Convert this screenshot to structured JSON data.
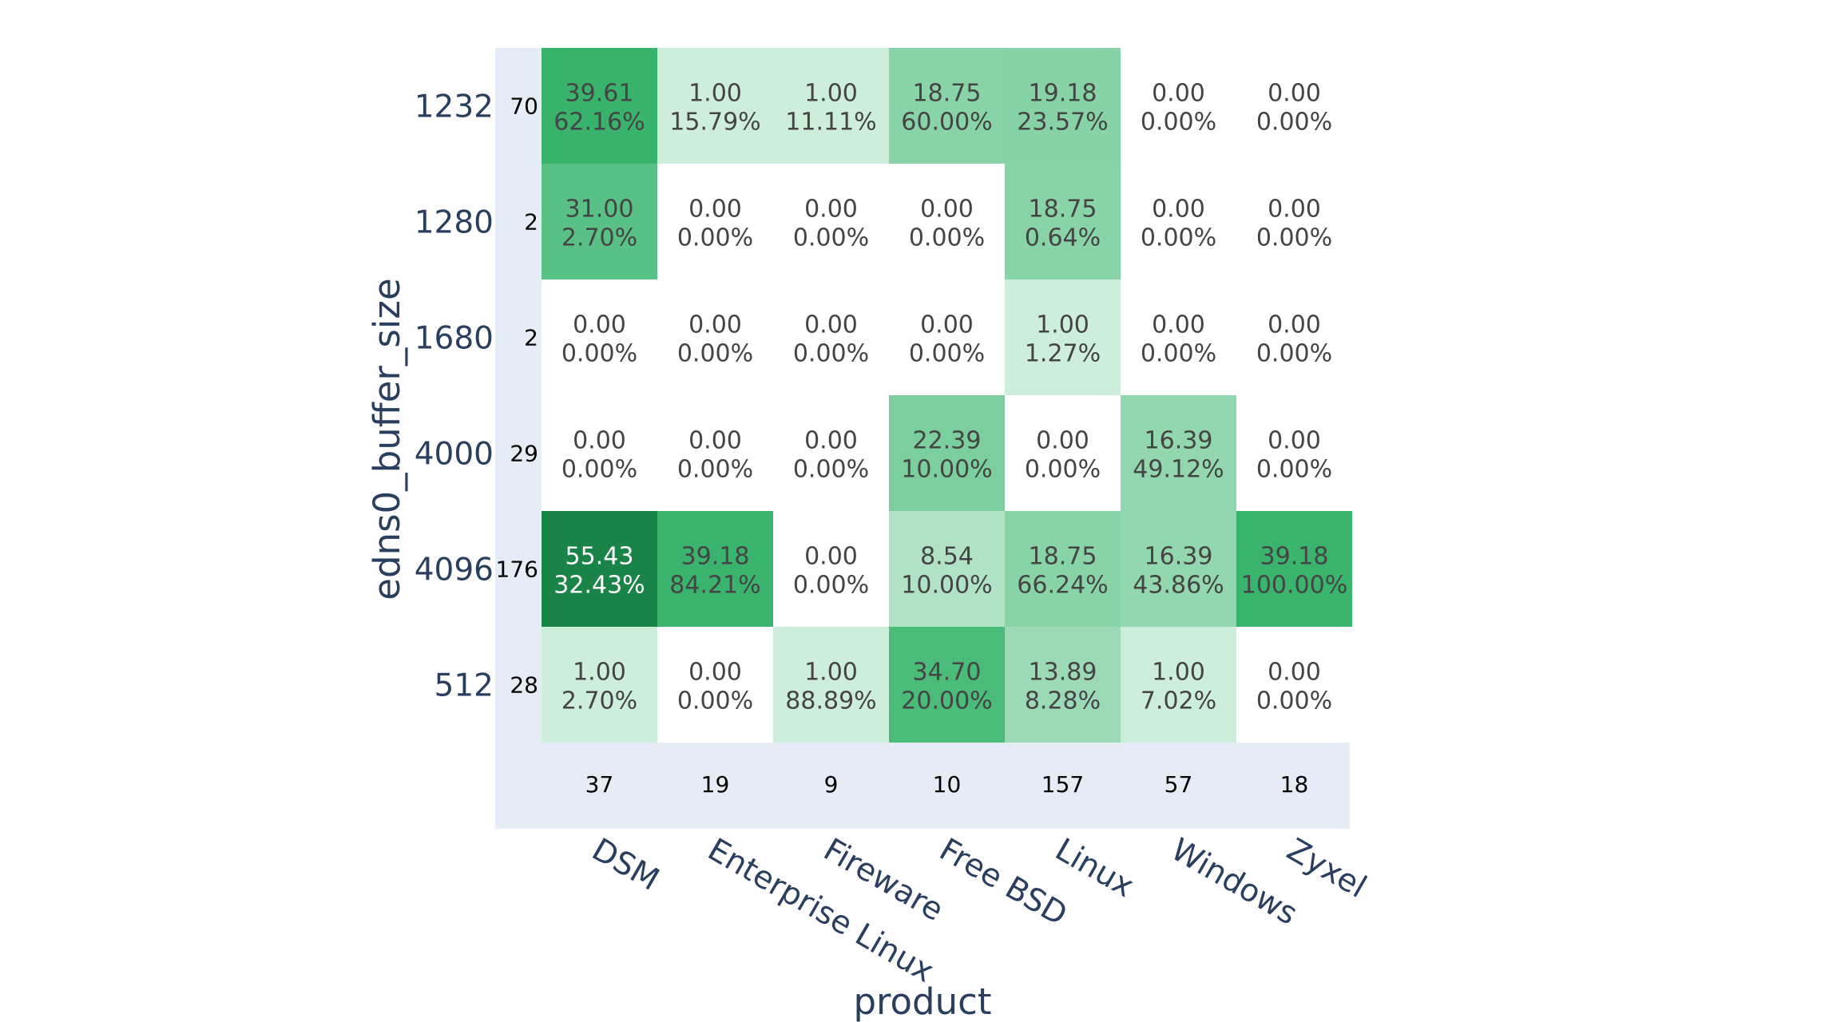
{
  "chart_data": {
    "type": "heatmap",
    "xlabel": "product",
    "ylabel": "edns0_buffer_size",
    "x_categories": [
      "DSM",
      "Enterprise Linux",
      "Fireware",
      "Free BSD",
      "Linux",
      "Windows",
      "Zyxel"
    ],
    "y_categories": [
      "1232",
      "1280",
      "1680",
      "4000",
      "4096",
      "512"
    ],
    "values": [
      [
        39.61,
        1.0,
        1.0,
        18.75,
        19.18,
        0.0,
        0.0
      ],
      [
        31.0,
        0.0,
        0.0,
        0.0,
        18.75,
        0.0,
        0.0
      ],
      [
        0.0,
        0.0,
        0.0,
        0.0,
        1.0,
        0.0,
        0.0
      ],
      [
        0.0,
        0.0,
        0.0,
        22.39,
        0.0,
        16.39,
        0.0
      ],
      [
        55.43,
        39.18,
        0.0,
        8.54,
        18.75,
        16.39,
        39.18
      ],
      [
        1.0,
        0.0,
        1.0,
        34.7,
        13.89,
        1.0,
        0.0
      ]
    ],
    "value_labels": [
      [
        "39.61",
        "1.00",
        "1.00",
        "18.75",
        "19.18",
        "0.00",
        "0.00"
      ],
      [
        "31.00",
        "0.00",
        "0.00",
        "0.00",
        "18.75",
        "0.00",
        "0.00"
      ],
      [
        "0.00",
        "0.00",
        "0.00",
        "0.00",
        "1.00",
        "0.00",
        "0.00"
      ],
      [
        "0.00",
        "0.00",
        "0.00",
        "22.39",
        "0.00",
        "16.39",
        "0.00"
      ],
      [
        "55.43",
        "39.18",
        "0.00",
        "8.54",
        "18.75",
        "16.39",
        "39.18"
      ],
      [
        "1.00",
        "0.00",
        "1.00",
        "34.70",
        "13.89",
        "1.00",
        "0.00"
      ]
    ],
    "percent_labels": [
      [
        "62.16%",
        "15.79%",
        "11.11%",
        "60.00%",
        "23.57%",
        "0.00%",
        "0.00%"
      ],
      [
        "2.70%",
        "0.00%",
        "0.00%",
        "0.00%",
        "0.64%",
        "0.00%",
        "0.00%"
      ],
      [
        "0.00%",
        "0.00%",
        "0.00%",
        "0.00%",
        "1.27%",
        "0.00%",
        "0.00%"
      ],
      [
        "0.00%",
        "0.00%",
        "0.00%",
        "10.00%",
        "0.00%",
        "49.12%",
        "0.00%"
      ],
      [
        "32.43%",
        "84.21%",
        "0.00%",
        "10.00%",
        "66.24%",
        "43.86%",
        "100.00%"
      ],
      [
        "2.70%",
        "0.00%",
        "88.89%",
        "20.00%",
        "8.28%",
        "7.02%",
        "0.00%"
      ]
    ],
    "row_totals": [
      "70",
      "2",
      "2",
      "29",
      "176",
      "28"
    ],
    "column_totals": [
      "37",
      "19",
      "9",
      "10",
      "157",
      "57",
      "18"
    ],
    "color_range": [
      0,
      55.43
    ],
    "colors": {
      "low": "#ffffff",
      "light": "#d2efdf",
      "mid": "#3bb56e",
      "high": "#1a8448",
      "margin_background": "#e5ecf6",
      "dark_text": "#444444",
      "light_text": "#ffffff"
    }
  }
}
